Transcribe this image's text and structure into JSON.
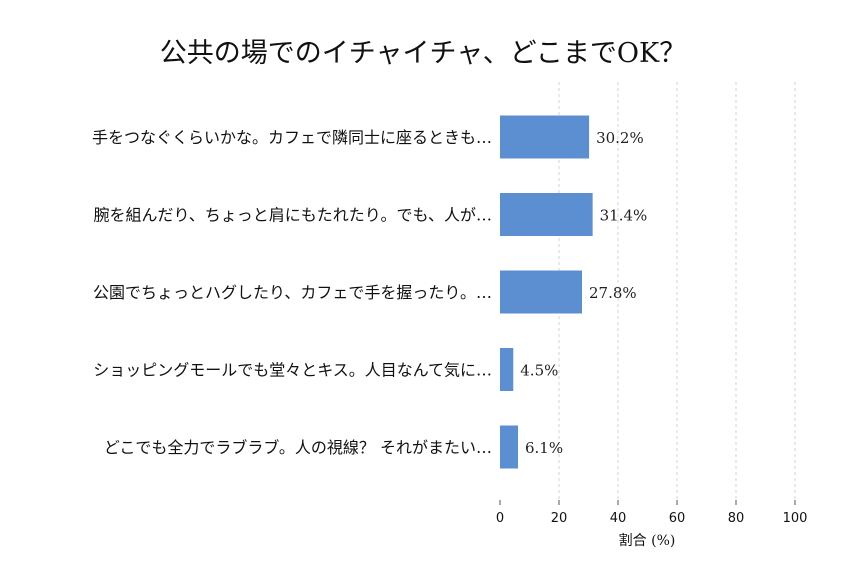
{
  "chart_data": {
    "type": "bar",
    "orientation": "horizontal",
    "title": "公共の場でのイチャイチャ、どこまでOK？",
    "xlabel": "割合 (%)",
    "ylabel": "",
    "xlim": [
      0,
      100
    ],
    "xticks": [
      0,
      20,
      40,
      60,
      80,
      100
    ],
    "grid": true,
    "bar_color": "#5b8fd1",
    "categories": [
      "手をつなぐくらいかな。カフェで隣同士に座るときも…",
      "腕を組んだり、ちょっと肩にもたれたり。でも、人が…",
      "公園でちょっとハグしたり、カフェで手を握ったり。…",
      "ショッピングモールでも堂々とキス。人目なんて気に…",
      "どこでも全力でラブラブ。人の視線？ それがまたい…"
    ],
    "values": [
      30.2,
      31.4,
      27.8,
      4.5,
      6.1
    ],
    "value_labels": [
      "30.2%",
      "31.4%",
      "27.8%",
      "4.5%",
      "6.1%"
    ]
  }
}
